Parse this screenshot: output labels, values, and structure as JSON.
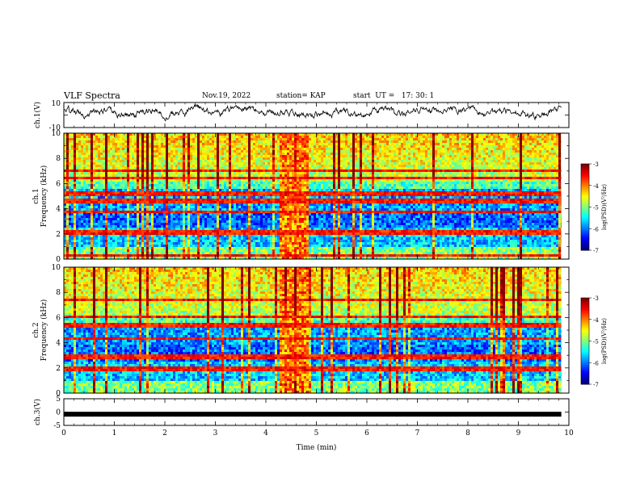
{
  "header": {
    "title": "VLF Spectra",
    "date": "Nov.19, 2022",
    "station": "station= KAP",
    "start": "start  UT =   17: 30: 1"
  },
  "chart_data": [
    {
      "type": "line",
      "panel": "ch1-waveform",
      "ylabel": "ch.1(V)",
      "ylim": [
        -10,
        10
      ],
      "yticks": [
        "10",
        "-10"
      ],
      "xlim": [
        0,
        10
      ],
      "color": "#000000",
      "baseline": 2.5,
      "amplitude": 3
    },
    {
      "type": "heatmap",
      "panel": "ch1-spectrogram",
      "xlabel": "Time (min)",
      "ylabel": "Frequency (kHz)",
      "channel_label": "ch.1",
      "ylim": [
        0,
        10
      ],
      "yticks": [
        "0",
        "2",
        "4",
        "6",
        "8",
        "10"
      ],
      "xlim": [
        0,
        9.85
      ],
      "colorbar": {
        "label": "log(PSD)(V²/Hz)",
        "range": [
          -7,
          -3
        ],
        "ticks": [
          "-3",
          "-4",
          "-5",
          "-6",
          "-7"
        ]
      },
      "bands_khz": [
        0.4,
        2.2,
        3.8,
        4.7,
        5.3,
        6.6,
        7.1
      ],
      "burst_min": [
        4.25,
        4.8
      ]
    },
    {
      "type": "heatmap",
      "panel": "ch2-spectrogram",
      "xlabel": "Time (min)",
      "ylabel": "Frequency (kHz)",
      "channel_label": "ch.2",
      "ylim": [
        0,
        10
      ],
      "yticks": [
        "0",
        "2",
        "4",
        "6",
        "8",
        "10"
      ],
      "xlim": [
        0,
        9.85
      ],
      "colorbar": {
        "label": "log(PSD)(V²/Hz)",
        "range": [
          -7,
          -3
        ],
        "ticks": [
          "-3",
          "-4",
          "-5",
          "-6",
          "-7"
        ]
      },
      "bands_khz": [
        2.0,
        3.0,
        4.4,
        5.5,
        6.2,
        7.5
      ],
      "burst_min": [
        4.25,
        4.8
      ]
    },
    {
      "type": "line",
      "panel": "ch3-waveform",
      "ylabel": "ch.3(V)",
      "xlabel": "Time (min)",
      "ylim": [
        -5,
        5
      ],
      "yticks": [
        "5",
        "0",
        "-5"
      ],
      "xlim": [
        0,
        10
      ],
      "xticks": [
        "0",
        "1",
        "2",
        "3",
        "4",
        "5",
        "6",
        "7",
        "8",
        "9",
        "10"
      ],
      "constant_value": -0.8,
      "x_end": 9.85,
      "color": "#000000"
    }
  ]
}
